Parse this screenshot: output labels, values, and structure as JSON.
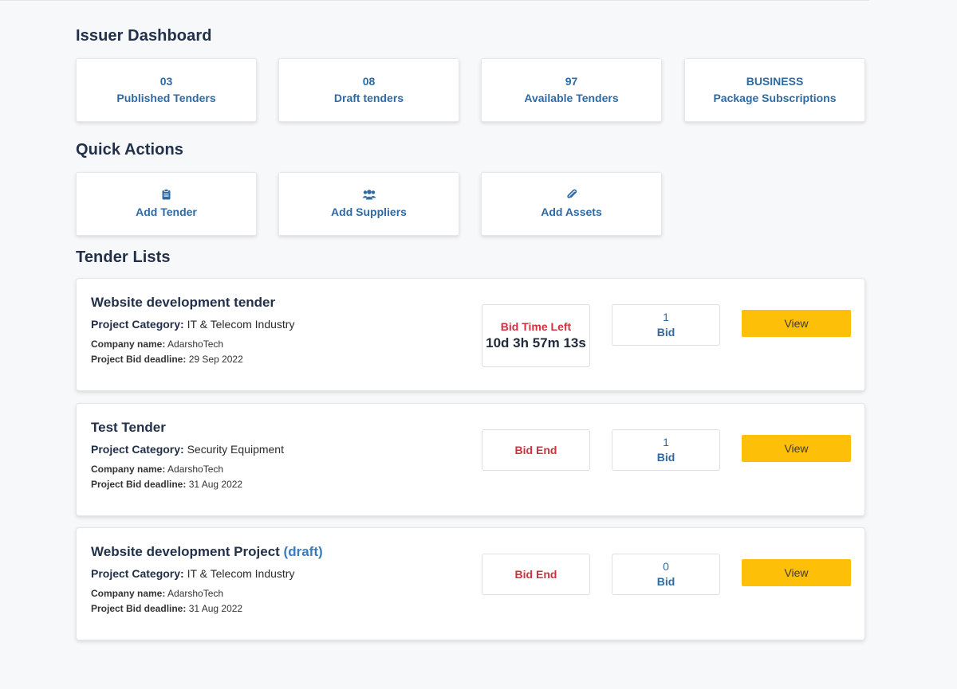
{
  "header": {
    "title": "Issuer Dashboard"
  },
  "stats": [
    {
      "value": "03",
      "label": "Published Tenders"
    },
    {
      "value": "08",
      "label": "Draft tenders"
    },
    {
      "value": "97",
      "label": "Available Tenders"
    },
    {
      "value": "BUSINESS",
      "label": "Package Subscriptions"
    }
  ],
  "quick_actions": {
    "title": "Quick Actions",
    "items": [
      {
        "label": "Add Tender",
        "icon": "clipboard-icon"
      },
      {
        "label": "Add Suppliers",
        "icon": "users-icon"
      },
      {
        "label": "Add Assets",
        "icon": "paperclip-icon"
      }
    ]
  },
  "tender_lists": {
    "title": "Tender Lists",
    "category_label": "Project Category:",
    "company_label": "Company name:",
    "deadline_label": "Project Bid deadline:",
    "bid_label": "Bid",
    "view_label": "View",
    "items": [
      {
        "title": "Website development tender",
        "draft": "",
        "category": "IT & Telecom Industry",
        "company": "AdarshoTech",
        "deadline": "29 Sep 2022",
        "time_label": "Bid Time Left",
        "time_value": "10d 3h 57m 13s",
        "bids": "1"
      },
      {
        "title": "Test Tender",
        "draft": "",
        "category": "Security Equipment",
        "company": "AdarshoTech",
        "deadline": "31 Aug 2022",
        "time_label": "Bid End",
        "time_value": "",
        "bids": "1"
      },
      {
        "title": "Website development Project",
        "draft": "(draft)",
        "category": "IT & Telecom Industry",
        "company": "AdarshoTech",
        "deadline": "31 Aug 2022",
        "time_label": "Bid End",
        "time_value": "",
        "bids": "0"
      }
    ]
  },
  "colors": {
    "accent_blue": "#2f6aa3",
    "heading": "#22304a",
    "alert_red": "#d2303f",
    "view_button": "#fdbf08",
    "background": "#f7f8fa"
  }
}
